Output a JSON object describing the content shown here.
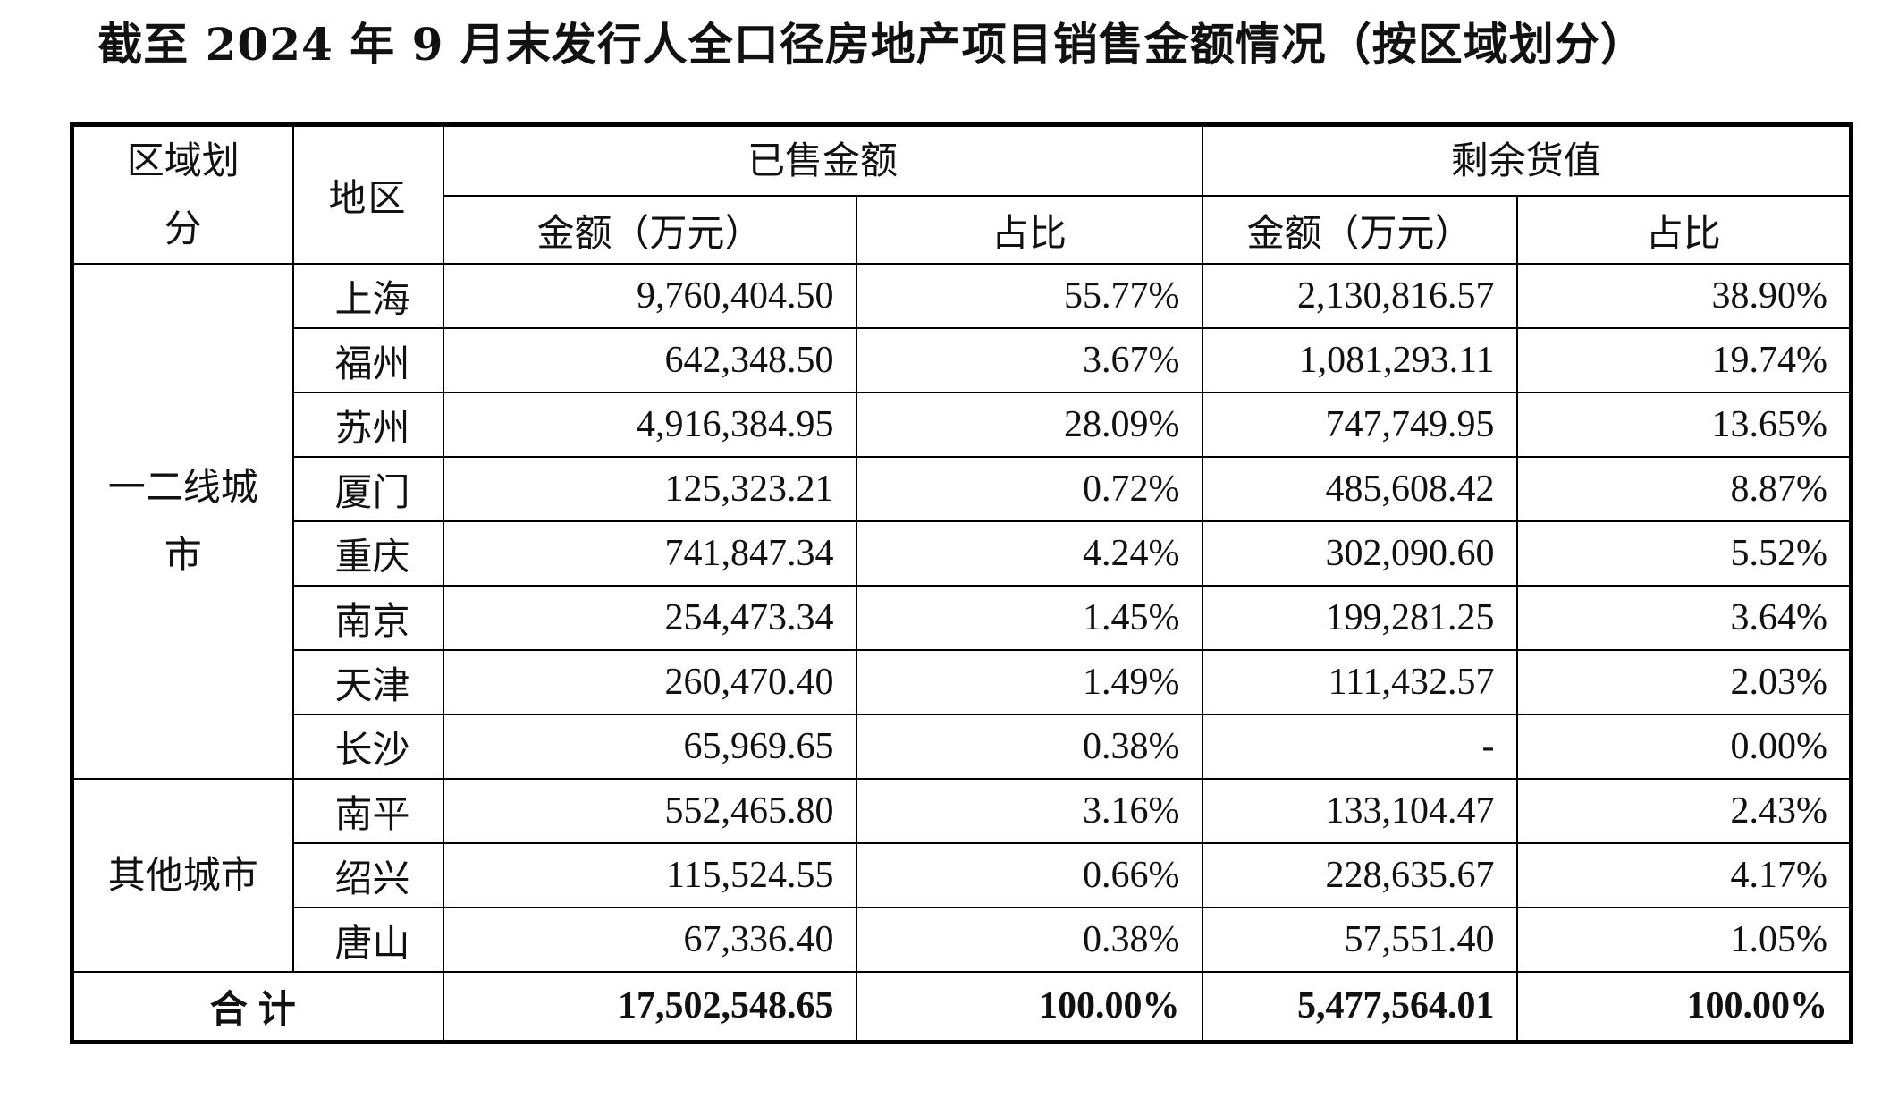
{
  "title": "截至 2024 年 9 月末发行人全口径房地产项目销售金额情况（按区域划分）",
  "headers": {
    "region": [
      "区域划",
      "分"
    ],
    "area": "地区",
    "sold_group": "已售金额",
    "remaining_group": "剩余货值",
    "amount": "金额（万元）",
    "share": "占比",
    "amount2": "金额（万元）",
    "share2": "占比"
  },
  "groups": [
    {
      "name_lines": [
        "一二线城",
        "市"
      ],
      "rows": [
        {
          "area": "上海",
          "sold_amount": "9,760,404.50",
          "sold_share": "55.77%",
          "remain_amount": "2,130,816.57",
          "remain_share": "38.90%"
        },
        {
          "area": "福州",
          "sold_amount": "642,348.50",
          "sold_share": "3.67%",
          "remain_amount": "1,081,293.11",
          "remain_share": "19.74%"
        },
        {
          "area": "苏州",
          "sold_amount": "4,916,384.95",
          "sold_share": "28.09%",
          "remain_amount": "747,749.95",
          "remain_share": "13.65%"
        },
        {
          "area": "厦门",
          "sold_amount": "125,323.21",
          "sold_share": "0.72%",
          "remain_amount": "485,608.42",
          "remain_share": "8.87%"
        },
        {
          "area": "重庆",
          "sold_amount": "741,847.34",
          "sold_share": "4.24%",
          "remain_amount": "302,090.60",
          "remain_share": "5.52%"
        },
        {
          "area": "南京",
          "sold_amount": "254,473.34",
          "sold_share": "1.45%",
          "remain_amount": "199,281.25",
          "remain_share": "3.64%"
        },
        {
          "area": "天津",
          "sold_amount": "260,470.40",
          "sold_share": "1.49%",
          "remain_amount": "111,432.57",
          "remain_share": "2.03%"
        },
        {
          "area": "长沙",
          "sold_amount": "65,969.65",
          "sold_share": "0.38%",
          "remain_amount": "-",
          "remain_share": "0.00%"
        }
      ]
    },
    {
      "name_lines": [
        "其他城市"
      ],
      "rows": [
        {
          "area": "南平",
          "sold_amount": "552,465.80",
          "sold_share": "3.16%",
          "remain_amount": "133,104.47",
          "remain_share": "2.43%"
        },
        {
          "area": "绍兴",
          "sold_amount": "115,524.55",
          "sold_share": "0.66%",
          "remain_amount": "228,635.67",
          "remain_share": "4.17%"
        },
        {
          "area": "唐山",
          "sold_amount": "67,336.40",
          "sold_share": "0.38%",
          "remain_amount": "57,551.40",
          "remain_share": "1.05%"
        }
      ]
    }
  ],
  "total": {
    "label": "合计",
    "sold_amount": "17,502,548.65",
    "sold_share": "100.00%",
    "remain_amount": "5,477,564.01",
    "remain_share": "100.00%"
  }
}
